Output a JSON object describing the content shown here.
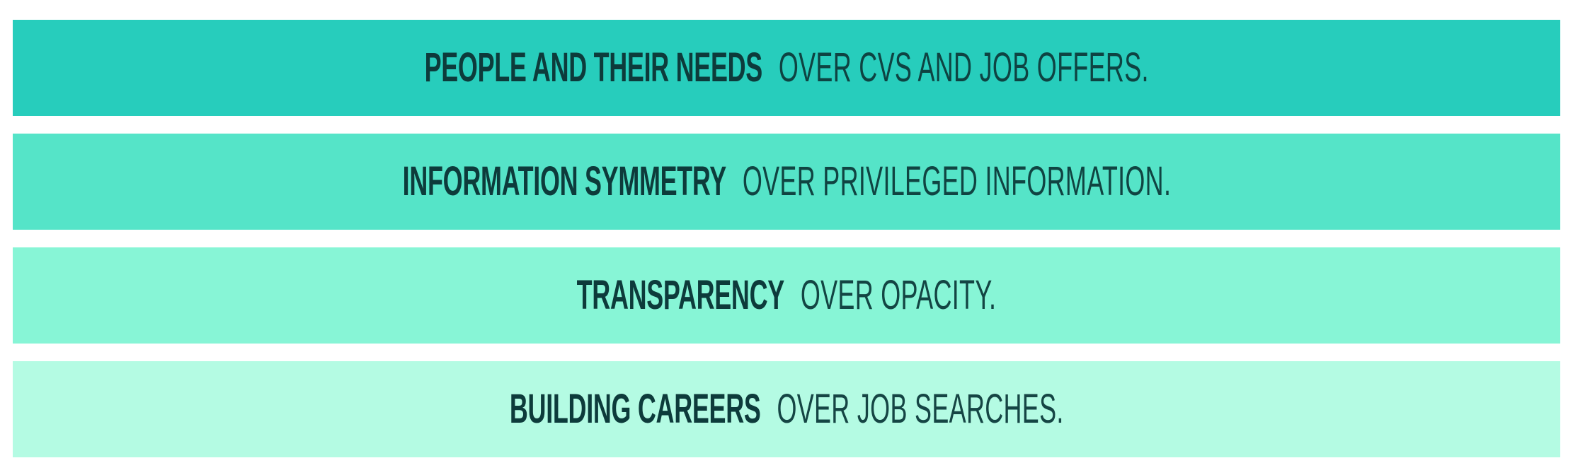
{
  "values": [
    {
      "strong": "PEOPLE AND THEIR NEEDS",
      "rest": "OVER CVS AND JOB OFFERS.",
      "color": "#27cdbc"
    },
    {
      "strong": "INFORMATION SYMMETRY",
      "rest": "OVER PRIVILEGED INFORMATION.",
      "color": "#55e4c8"
    },
    {
      "strong": "TRANSPARENCY",
      "rest": "OVER OPACITY.",
      "color": "#87f5d6"
    },
    {
      "strong": "BUILDING CAREERS",
      "rest": "OVER JOB SEARCHES.",
      "color": "#b4fbe3"
    }
  ]
}
